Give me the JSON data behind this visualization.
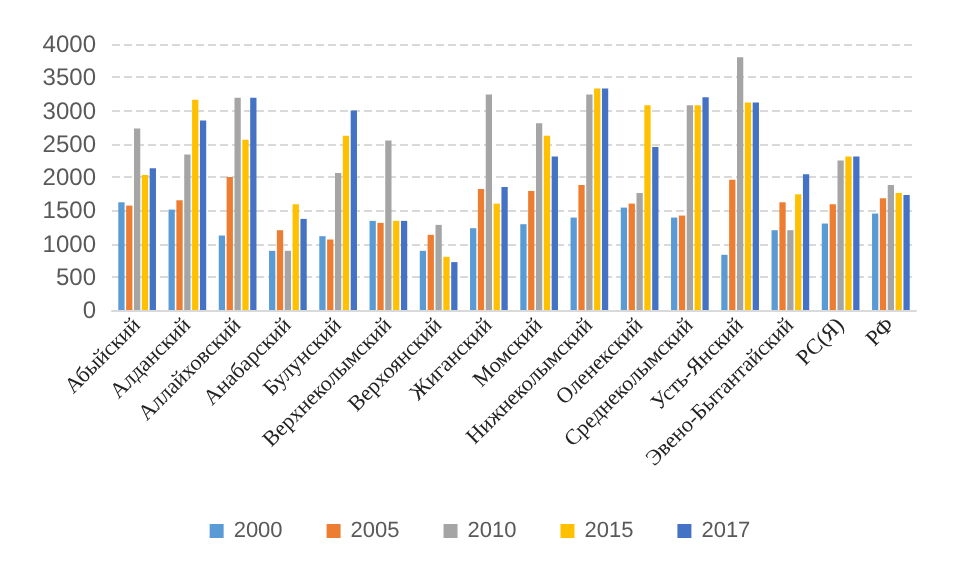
{
  "chart_data": {
    "type": "bar",
    "categories": [
      "Абыйский",
      "Алданский",
      "Аллайховский",
      "Анабарский",
      "Булунский",
      "Верхнеколымский",
      "Верхоянский",
      "Жиганский",
      "Момский",
      "Нижнеколымский",
      "Оленекский",
      "Среднеколымский",
      "Усть-Янский",
      "Эвено-Бытантайский",
      "РС(Я)",
      "РФ"
    ],
    "series": [
      {
        "name": "2000",
        "color": "#5b9bd5",
        "values": [
          1620,
          1510,
          1120,
          890,
          1110,
          1340,
          890,
          1230,
          1290,
          1390,
          1540,
          1390,
          830,
          1200,
          1300,
          1450
        ]
      },
      {
        "name": "2005",
        "color": "#ed7d31",
        "values": [
          1570,
          1650,
          2000,
          1200,
          1060,
          1310,
          1130,
          1820,
          1790,
          1880,
          1600,
          1420,
          1960,
          1620,
          1590,
          1680
        ]
      },
      {
        "name": "2010",
        "color": "#a5a5a5",
        "values": [
          2730,
          2340,
          3190,
          890,
          2060,
          2550,
          1280,
          3240,
          2810,
          3240,
          1760,
          3080,
          3800,
          1200,
          2250,
          1880
        ]
      },
      {
        "name": "2015",
        "color": "#ffc000",
        "values": [
          2030,
          3160,
          2560,
          1590,
          2620,
          1340,
          800,
          1600,
          2620,
          3330,
          3080,
          3080,
          3120,
          1740,
          2310,
          1760
        ]
      },
      {
        "name": "2017",
        "color": "#4472c4",
        "values": [
          2130,
          2850,
          3190,
          1370,
          3000,
          1340,
          720,
          1850,
          2310,
          3330,
          2450,
          3200,
          3120,
          2040,
          2310,
          1730
        ]
      }
    ],
    "ylim": [
      0,
      4000
    ],
    "yticks": [
      0,
      500,
      1000,
      1500,
      2000,
      2500,
      3000,
      3500,
      4000
    ],
    "grid": "y",
    "legend": "bottom"
  }
}
